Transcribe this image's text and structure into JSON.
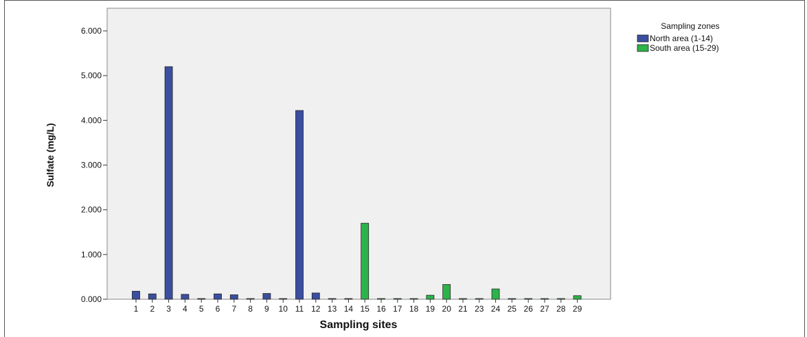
{
  "chart_data": {
    "type": "bar",
    "title": "",
    "xlabel": "Sampling sites",
    "ylabel": "Sulfate (mg/L)",
    "ylim": [
      0,
      6000
    ],
    "yticks": [
      0,
      1000,
      2000,
      3000,
      4000,
      5000,
      6000
    ],
    "ytick_labels": [
      "0.000",
      "1.000",
      "2.000",
      "3.000",
      "4.000",
      "5.000",
      "6.000"
    ],
    "grid": false,
    "legend_position": "top-right",
    "legend_title": "Sampling zones",
    "categories": [
      "1",
      "2",
      "3",
      "4",
      "5",
      "6",
      "7",
      "8",
      "9",
      "10",
      "11",
      "12",
      "13",
      "14",
      "15",
      "16",
      "17",
      "18",
      "19",
      "20",
      "21",
      "23",
      "24",
      "25",
      "26",
      "27",
      "28",
      "29"
    ],
    "series": [
      {
        "name": "North area (1-14)",
        "color": "#3b4fa0",
        "values": [
          180,
          120,
          5200,
          110,
          5,
          120,
          100,
          5,
          130,
          5,
          4220,
          140,
          5,
          5,
          null,
          null,
          null,
          null,
          null,
          null,
          null,
          null,
          null,
          null,
          null,
          null,
          null,
          null
        ]
      },
      {
        "name": "South area (15-29)",
        "color": "#2db34a",
        "values": [
          null,
          null,
          null,
          null,
          null,
          null,
          null,
          null,
          null,
          null,
          null,
          null,
          null,
          null,
          1700,
          5,
          5,
          5,
          90,
          330,
          5,
          5,
          230,
          5,
          5,
          5,
          5,
          80
        ]
      }
    ]
  }
}
